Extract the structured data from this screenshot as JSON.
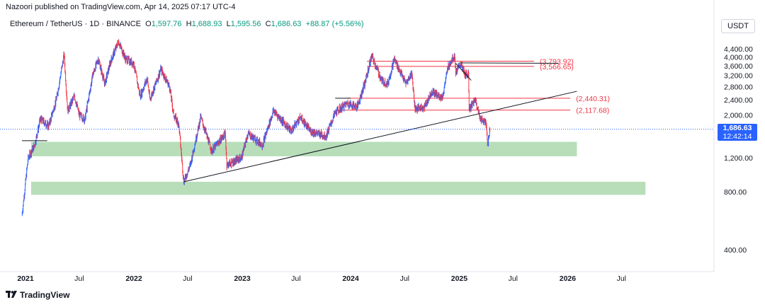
{
  "header": {
    "published": "Nazoori published on TradingView.com, Apr 14, 2025 07:17 UTC-4"
  },
  "legend": {
    "symbol": "Ethereum / TetherUS · 1D · BINANCE",
    "o_label": "O",
    "o": "1,597.76",
    "h_label": "H",
    "h": "1,688.93",
    "l_label": "L",
    "l": "1,595.56",
    "c_label": "C",
    "c": "1,686.63",
    "change": "+88.87 (+5.56%)"
  },
  "currency_button": "USDT",
  "last_price": {
    "price": "1,686.63",
    "countdown": "12:42:14"
  },
  "footer": {
    "brand": "TradingView"
  },
  "colors": {
    "up": "#089981",
    "down": "#f23645",
    "line_red": "#f23645",
    "zone_green": "#a5d6a7",
    "last_price_bg": "#2962ff"
  },
  "chart_data": {
    "type": "candlestick",
    "scale": "log",
    "ylim": [
      350,
      5200
    ],
    "y_ticks": [
      {
        "value": 4400,
        "label": "4,400.00"
      },
      {
        "value": 4000,
        "label": "4,000.00"
      },
      {
        "value": 3600,
        "label": "3,600.00"
      },
      {
        "value": 3200,
        "label": "3,200.00"
      },
      {
        "value": 2800,
        "label": "2,800.00"
      },
      {
        "value": 2400,
        "label": "2,400.00"
      },
      {
        "value": 2000,
        "label": "2,000.00"
      },
      {
        "value": 1200,
        "label": "1,200.00"
      },
      {
        "value": 800,
        "label": "800.00"
      },
      {
        "value": 400,
        "label": "400.00"
      }
    ],
    "x_ticks": [
      {
        "date": "2021-01-01",
        "label": "2021",
        "bold": true
      },
      {
        "date": "2021-07-01",
        "label": "Jul",
        "bold": false
      },
      {
        "date": "2022-01-01",
        "label": "2022",
        "bold": true
      },
      {
        "date": "2022-07-01",
        "label": "Jul",
        "bold": false
      },
      {
        "date": "2023-01-01",
        "label": "2023",
        "bold": true
      },
      {
        "date": "2023-07-01",
        "label": "Jul",
        "bold": false
      },
      {
        "date": "2024-01-01",
        "label": "2024",
        "bold": true
      },
      {
        "date": "2024-07-01",
        "label": "Jul",
        "bold": false
      },
      {
        "date": "2025-01-01",
        "label": "2025",
        "bold": true
      },
      {
        "date": "2025-07-01",
        "label": "Jul",
        "bold": false
      },
      {
        "date": "2026-01-01",
        "label": "2026",
        "bold": true
      },
      {
        "date": "2026-07-01",
        "label": "Jul",
        "bold": false
      }
    ],
    "price_path": [
      [
        "2020-12-20",
        600
      ],
      [
        "2021-01-10",
        1200
      ],
      [
        "2021-02-01",
        1400
      ],
      [
        "2021-02-20",
        1900
      ],
      [
        "2021-03-20",
        1750
      ],
      [
        "2021-04-15",
        2400
      ],
      [
        "2021-05-11",
        4100
      ],
      [
        "2021-05-23",
        2100
      ],
      [
        "2021-06-15",
        2500
      ],
      [
        "2021-07-01",
        2000
      ],
      [
        "2021-07-20",
        1900
      ],
      [
        "2021-08-15",
        3200
      ],
      [
        "2021-09-03",
        3900
      ],
      [
        "2021-09-25",
        2900
      ],
      [
        "2021-10-15",
        3800
      ],
      [
        "2021-11-10",
        4800
      ],
      [
        "2021-12-04",
        3900
      ],
      [
        "2021-12-31",
        3700
      ],
      [
        "2022-01-22",
        2500
      ],
      [
        "2022-02-15",
        3100
      ],
      [
        "2022-02-24",
        2400
      ],
      [
        "2022-04-02",
        3450
      ],
      [
        "2022-05-01",
        2800
      ],
      [
        "2022-05-15",
        2000
      ],
      [
        "2022-06-01",
        1800
      ],
      [
        "2022-06-18",
        900
      ],
      [
        "2022-07-10",
        1100
      ],
      [
        "2022-08-14",
        1950
      ],
      [
        "2022-09-20",
        1300
      ],
      [
        "2022-11-05",
        1600
      ],
      [
        "2022-11-10",
        1100
      ],
      [
        "2022-12-30",
        1200
      ],
      [
        "2023-01-20",
        1600
      ],
      [
        "2023-03-10",
        1400
      ],
      [
        "2023-04-16",
        2100
      ],
      [
        "2023-06-15",
        1650
      ],
      [
        "2023-07-15",
        1950
      ],
      [
        "2023-08-18",
        1650
      ],
      [
        "2023-10-10",
        1550
      ],
      [
        "2023-11-10",
        2050
      ],
      [
        "2023-12-20",
        2300
      ],
      [
        "2024-01-23",
        2200
      ],
      [
        "2024-02-20",
        3000
      ],
      [
        "2024-03-12",
        4050
      ],
      [
        "2024-04-15",
        3000
      ],
      [
        "2024-05-05",
        2900
      ],
      [
        "2024-05-27",
        3900
      ],
      [
        "2024-07-05",
        2900
      ],
      [
        "2024-07-25",
        3300
      ],
      [
        "2024-08-05",
        2150
      ],
      [
        "2024-09-06",
        2200
      ],
      [
        "2024-09-30",
        2650
      ],
      [
        "2024-11-05",
        2450
      ],
      [
        "2024-11-25",
        3600
      ],
      [
        "2024-12-16",
        4050
      ],
      [
        "2024-12-20",
        3300
      ],
      [
        "2025-01-06",
        3700
      ],
      [
        "2025-01-20",
        3200
      ],
      [
        "2025-02-01",
        3300
      ],
      [
        "2025-02-03",
        2150
      ],
      [
        "2025-02-25",
        2400
      ],
      [
        "2025-03-10",
        1950
      ],
      [
        "2025-04-01",
        1800
      ],
      [
        "2025-04-07",
        1400
      ],
      [
        "2025-04-14",
        1686.63
      ]
    ],
    "levels": [
      {
        "label": "(3,793.92)",
        "value": 3793.92,
        "from": "2024-02-25",
        "to": "2025-09-10"
      },
      {
        "label": "(3,566.65)",
        "value": 3566.65,
        "from": "2024-02-25",
        "to": "2025-09-10"
      },
      {
        "label": "(2,440.31)",
        "value": 2440.31,
        "from": "2023-12-20",
        "to": "2026-01-10"
      },
      {
        "label": "(2,117.68)",
        "value": 2117.68,
        "from": "2023-11-15",
        "to": "2026-01-10"
      }
    ],
    "zones": [
      {
        "from": "2021-01-20",
        "to": "2026-02-01",
        "top": 1450,
        "bottom": 1220
      },
      {
        "from": "2021-01-20",
        "to": "2026-09-20",
        "top": 900,
        "bottom": 770
      }
    ],
    "trendlines": [
      {
        "from": [
          "2022-06-18",
          900
        ],
        "to": [
          "2026-02-01",
          2650
        ],
        "color": "#131722"
      },
      {
        "from": [
          "2024-12-20",
          3700
        ],
        "to": [
          "2025-02-10",
          3020
        ],
        "color": "#131722"
      },
      {
        "from": [
          "2025-01-01",
          3720
        ],
        "to": [
          "2025-12-01",
          3700
        ],
        "color": "#131722"
      },
      {
        "from": [
          "2020-12-20",
          1470
        ],
        "to": [
          "2021-03-15",
          1470
        ],
        "color": "#131722"
      },
      {
        "from": [
          "2023-11-10",
          2440
        ],
        "to": [
          "2024-01-01",
          2440
        ],
        "color": "#131722"
      }
    ]
  }
}
